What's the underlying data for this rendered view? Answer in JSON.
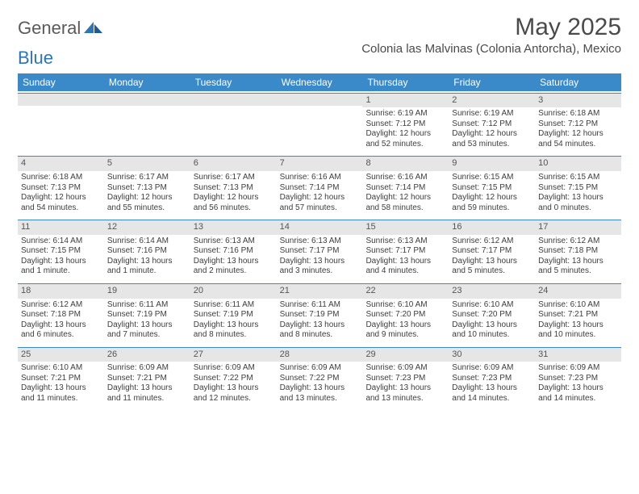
{
  "brand": {
    "part1": "General",
    "part2": "Blue"
  },
  "title": "May 2025",
  "location": "Colonia las Malvinas (Colonia Antorcha), Mexico",
  "colors": {
    "header_bg": "#3a8ac9",
    "header_text": "#ffffff",
    "daynum_bg": "#e6e6e6",
    "daynum_border": "#3a8ac9",
    "body_text": "#3d3d3d",
    "title_text": "#4a4a4a",
    "logo_gray": "#5a5a5a",
    "logo_blue": "#2e75b6"
  },
  "weekdays": [
    "Sunday",
    "Monday",
    "Tuesday",
    "Wednesday",
    "Thursday",
    "Friday",
    "Saturday"
  ],
  "weeks": [
    [
      {
        "n": "",
        "sr": "",
        "ss": "",
        "dl": ""
      },
      {
        "n": "",
        "sr": "",
        "ss": "",
        "dl": ""
      },
      {
        "n": "",
        "sr": "",
        "ss": "",
        "dl": ""
      },
      {
        "n": "",
        "sr": "",
        "ss": "",
        "dl": ""
      },
      {
        "n": "1",
        "sr": "Sunrise: 6:19 AM",
        "ss": "Sunset: 7:12 PM",
        "dl": "Daylight: 12 hours and 52 minutes."
      },
      {
        "n": "2",
        "sr": "Sunrise: 6:19 AM",
        "ss": "Sunset: 7:12 PM",
        "dl": "Daylight: 12 hours and 53 minutes."
      },
      {
        "n": "3",
        "sr": "Sunrise: 6:18 AM",
        "ss": "Sunset: 7:12 PM",
        "dl": "Daylight: 12 hours and 54 minutes."
      }
    ],
    [
      {
        "n": "4",
        "sr": "Sunrise: 6:18 AM",
        "ss": "Sunset: 7:13 PM",
        "dl": "Daylight: 12 hours and 54 minutes."
      },
      {
        "n": "5",
        "sr": "Sunrise: 6:17 AM",
        "ss": "Sunset: 7:13 PM",
        "dl": "Daylight: 12 hours and 55 minutes."
      },
      {
        "n": "6",
        "sr": "Sunrise: 6:17 AM",
        "ss": "Sunset: 7:13 PM",
        "dl": "Daylight: 12 hours and 56 minutes."
      },
      {
        "n": "7",
        "sr": "Sunrise: 6:16 AM",
        "ss": "Sunset: 7:14 PM",
        "dl": "Daylight: 12 hours and 57 minutes."
      },
      {
        "n": "8",
        "sr": "Sunrise: 6:16 AM",
        "ss": "Sunset: 7:14 PM",
        "dl": "Daylight: 12 hours and 58 minutes."
      },
      {
        "n": "9",
        "sr": "Sunrise: 6:15 AM",
        "ss": "Sunset: 7:15 PM",
        "dl": "Daylight: 12 hours and 59 minutes."
      },
      {
        "n": "10",
        "sr": "Sunrise: 6:15 AM",
        "ss": "Sunset: 7:15 PM",
        "dl": "Daylight: 13 hours and 0 minutes."
      }
    ],
    [
      {
        "n": "11",
        "sr": "Sunrise: 6:14 AM",
        "ss": "Sunset: 7:15 PM",
        "dl": "Daylight: 13 hours and 1 minute."
      },
      {
        "n": "12",
        "sr": "Sunrise: 6:14 AM",
        "ss": "Sunset: 7:16 PM",
        "dl": "Daylight: 13 hours and 1 minute."
      },
      {
        "n": "13",
        "sr": "Sunrise: 6:13 AM",
        "ss": "Sunset: 7:16 PM",
        "dl": "Daylight: 13 hours and 2 minutes."
      },
      {
        "n": "14",
        "sr": "Sunrise: 6:13 AM",
        "ss": "Sunset: 7:17 PM",
        "dl": "Daylight: 13 hours and 3 minutes."
      },
      {
        "n": "15",
        "sr": "Sunrise: 6:13 AM",
        "ss": "Sunset: 7:17 PM",
        "dl": "Daylight: 13 hours and 4 minutes."
      },
      {
        "n": "16",
        "sr": "Sunrise: 6:12 AM",
        "ss": "Sunset: 7:17 PM",
        "dl": "Daylight: 13 hours and 5 minutes."
      },
      {
        "n": "17",
        "sr": "Sunrise: 6:12 AM",
        "ss": "Sunset: 7:18 PM",
        "dl": "Daylight: 13 hours and 5 minutes."
      }
    ],
    [
      {
        "n": "18",
        "sr": "Sunrise: 6:12 AM",
        "ss": "Sunset: 7:18 PM",
        "dl": "Daylight: 13 hours and 6 minutes."
      },
      {
        "n": "19",
        "sr": "Sunrise: 6:11 AM",
        "ss": "Sunset: 7:19 PM",
        "dl": "Daylight: 13 hours and 7 minutes."
      },
      {
        "n": "20",
        "sr": "Sunrise: 6:11 AM",
        "ss": "Sunset: 7:19 PM",
        "dl": "Daylight: 13 hours and 8 minutes."
      },
      {
        "n": "21",
        "sr": "Sunrise: 6:11 AM",
        "ss": "Sunset: 7:19 PM",
        "dl": "Daylight: 13 hours and 8 minutes."
      },
      {
        "n": "22",
        "sr": "Sunrise: 6:10 AM",
        "ss": "Sunset: 7:20 PM",
        "dl": "Daylight: 13 hours and 9 minutes."
      },
      {
        "n": "23",
        "sr": "Sunrise: 6:10 AM",
        "ss": "Sunset: 7:20 PM",
        "dl": "Daylight: 13 hours and 10 minutes."
      },
      {
        "n": "24",
        "sr": "Sunrise: 6:10 AM",
        "ss": "Sunset: 7:21 PM",
        "dl": "Daylight: 13 hours and 10 minutes."
      }
    ],
    [
      {
        "n": "25",
        "sr": "Sunrise: 6:10 AM",
        "ss": "Sunset: 7:21 PM",
        "dl": "Daylight: 13 hours and 11 minutes."
      },
      {
        "n": "26",
        "sr": "Sunrise: 6:09 AM",
        "ss": "Sunset: 7:21 PM",
        "dl": "Daylight: 13 hours and 11 minutes."
      },
      {
        "n": "27",
        "sr": "Sunrise: 6:09 AM",
        "ss": "Sunset: 7:22 PM",
        "dl": "Daylight: 13 hours and 12 minutes."
      },
      {
        "n": "28",
        "sr": "Sunrise: 6:09 AM",
        "ss": "Sunset: 7:22 PM",
        "dl": "Daylight: 13 hours and 13 minutes."
      },
      {
        "n": "29",
        "sr": "Sunrise: 6:09 AM",
        "ss": "Sunset: 7:23 PM",
        "dl": "Daylight: 13 hours and 13 minutes."
      },
      {
        "n": "30",
        "sr": "Sunrise: 6:09 AM",
        "ss": "Sunset: 7:23 PM",
        "dl": "Daylight: 13 hours and 14 minutes."
      },
      {
        "n": "31",
        "sr": "Sunrise: 6:09 AM",
        "ss": "Sunset: 7:23 PM",
        "dl": "Daylight: 13 hours and 14 minutes."
      }
    ]
  ]
}
